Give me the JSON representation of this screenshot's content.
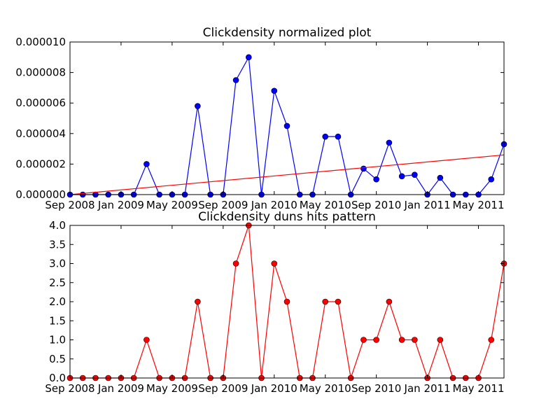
{
  "chart_data": [
    {
      "type": "line",
      "title": "Clickdensity normalized plot",
      "xlabel": "",
      "ylabel": "",
      "xlim": [
        "2008-09-01",
        "2011-07-01"
      ],
      "ylim": [
        0,
        1e-05
      ],
      "grid": false,
      "x_ticks": [
        "Sep 2008",
        "Jan 2009",
        "May 2009",
        "Sep 2009",
        "Jan 2010",
        "May 2010",
        "Sep 2010",
        "Jan 2011",
        "May 2011"
      ],
      "y_ticks": [
        "0.000000",
        "0.000002",
        "0.000004",
        "0.000006",
        "0.000008",
        "0.000010"
      ],
      "x": [
        "2008-09-01",
        "2008-10-01",
        "2008-11-01",
        "2008-12-01",
        "2009-01-01",
        "2009-02-01",
        "2009-03-01",
        "2009-04-01",
        "2009-05-01",
        "2009-06-01",
        "2009-07-01",
        "2009-08-01",
        "2009-09-01",
        "2009-10-01",
        "2009-11-01",
        "2009-12-01",
        "2010-01-01",
        "2010-02-01",
        "2010-03-01",
        "2010-04-01",
        "2010-05-01",
        "2010-06-01",
        "2010-07-01",
        "2010-08-01",
        "2010-09-01",
        "2010-10-01",
        "2010-11-01",
        "2010-12-01",
        "2011-01-01",
        "2011-02-01",
        "2011-03-01",
        "2011-04-01",
        "2011-05-01",
        "2011-06-01",
        "2011-07-01"
      ],
      "series": [
        {
          "color": "#0000ff",
          "marker": "circle",
          "values": [
            0,
            0,
            0,
            0,
            0,
            0,
            2e-06,
            0,
            0,
            0,
            5.8e-06,
            0,
            0,
            7.5e-06,
            9e-06,
            0,
            6.8e-06,
            4.5e-06,
            0,
            0,
            3.8e-06,
            3.8e-06,
            0,
            1.7e-06,
            1e-06,
            3.4e-06,
            1.2e-06,
            1.3e-06,
            0,
            1.1e-06,
            0,
            0,
            0,
            1e-06,
            3.3e-06
          ]
        },
        {
          "color": "#ff0000",
          "marker": "none",
          "kind": "trend line",
          "x": [
            "2008-09-01",
            "2011-07-01"
          ],
          "values": [
            0,
            2.6e-06
          ]
        }
      ]
    },
    {
      "type": "line",
      "title": "Clickdensity duns hits pattern",
      "xlabel": "",
      "ylabel": "",
      "xlim": [
        "2008-09-01",
        "2011-07-01"
      ],
      "ylim": [
        0,
        4
      ],
      "grid": false,
      "x_ticks": [
        "Sep 2008",
        "Jan 2009",
        "May 2009",
        "Sep 2009",
        "Jan 2010",
        "May 2010",
        "Sep 2010",
        "Jan 2011",
        "May 2011"
      ],
      "y_ticks": [
        "0.0",
        "0.5",
        "1.0",
        "1.5",
        "2.0",
        "2.5",
        "3.0",
        "3.5",
        "4.0"
      ],
      "x": [
        "2008-09-01",
        "2008-10-01",
        "2008-11-01",
        "2008-12-01",
        "2009-01-01",
        "2009-02-01",
        "2009-03-01",
        "2009-04-01",
        "2009-05-01",
        "2009-06-01",
        "2009-07-01",
        "2009-08-01",
        "2009-09-01",
        "2009-10-01",
        "2009-11-01",
        "2009-12-01",
        "2010-01-01",
        "2010-02-01",
        "2010-03-01",
        "2010-04-01",
        "2010-05-01",
        "2010-06-01",
        "2010-07-01",
        "2010-08-01",
        "2010-09-01",
        "2010-10-01",
        "2010-11-01",
        "2010-12-01",
        "2011-01-01",
        "2011-02-01",
        "2011-03-01",
        "2011-04-01",
        "2011-05-01",
        "2011-06-01",
        "2011-07-01"
      ],
      "series": [
        {
          "color": "#ff0000",
          "marker": "circle",
          "values": [
            0,
            0,
            0,
            0,
            0,
            0,
            1,
            0,
            0,
            0,
            2,
            0,
            0,
            3,
            4,
            0,
            3,
            2,
            0,
            0,
            2,
            2,
            0,
            1,
            1,
            2,
            1,
            1,
            0,
            1,
            0,
            0,
            0,
            1,
            3
          ]
        }
      ]
    }
  ]
}
